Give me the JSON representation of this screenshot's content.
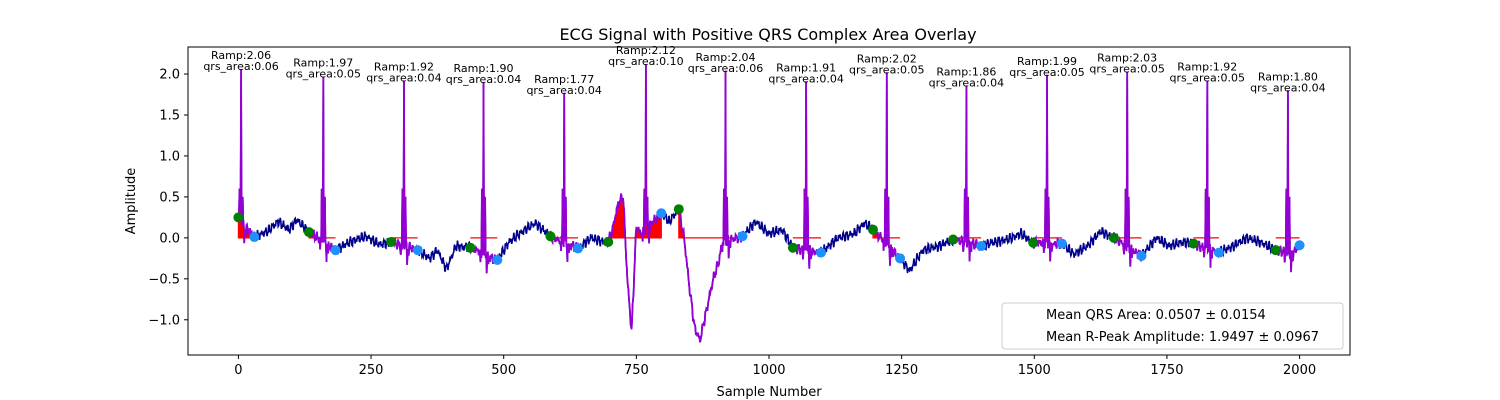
{
  "chart_data": {
    "type": "line",
    "title": "ECG Signal with Positive QRS Complex Area Overlay",
    "xlabel": "Sample Number",
    "ylabel": "Amplitude",
    "xlim": [
      -95,
      2095
    ],
    "ylim": [
      -1.43,
      2.33
    ],
    "x_ticks": [
      0,
      250,
      500,
      750,
      1000,
      1250,
      1500,
      1750,
      2000
    ],
    "y_ticks": [
      -1.0,
      -0.5,
      0.0,
      0.5,
      1.0,
      1.5,
      2.0
    ],
    "x_tick_labels": [
      "0",
      "250",
      "500",
      "750",
      "1000",
      "1250",
      "1500",
      "1750",
      "2000"
    ],
    "y_tick_labels": [
      "−1.0",
      "−0.5",
      "0.0",
      "0.5",
      "1.0",
      "1.5",
      "2.0"
    ],
    "grid": false,
    "legend_placement": "lower-right",
    "legend_entries": [
      "Mean QRS Area: 0.0507 ± 0.0154",
      "Mean R-Peak Amplitude: 1.9497 ± 0.0967"
    ],
    "colors": {
      "signal": "#00008b",
      "qrs_segment": "#9400d3",
      "qrs_area": "#ff0000",
      "onset_marker": "#008000",
      "offset_marker": "#1e90ff"
    },
    "r_peaks": [
      {
        "x": 5,
        "ramp": 2.06,
        "area": 0.06,
        "label_ramp": "Ramp:2.06",
        "label_area": "qrs_area:0.06"
      },
      {
        "x": 160,
        "ramp": 1.97,
        "area": 0.05,
        "label_ramp": "Ramp:1.97",
        "label_area": "qrs_area:0.05"
      },
      {
        "x": 312,
        "ramp": 1.92,
        "area": 0.04,
        "label_ramp": "Ramp:1.92",
        "label_area": "qrs_area:0.04"
      },
      {
        "x": 462,
        "ramp": 1.9,
        "area": 0.04,
        "label_ramp": "Ramp:1.90",
        "label_area": "qrs_area:0.04"
      },
      {
        "x": 614,
        "ramp": 1.77,
        "area": 0.04,
        "label_ramp": "Ramp:1.77",
        "label_area": "qrs_area:0.04"
      },
      {
        "x": 768,
        "ramp": 2.12,
        "area": 0.1,
        "label_ramp": "Ramp:2.12",
        "label_area": "qrs_area:0.10"
      },
      {
        "x": 918,
        "ramp": 2.04,
        "area": 0.06,
        "label_ramp": "Ramp:2.04",
        "label_area": "qrs_area:0.06"
      },
      {
        "x": 1070,
        "ramp": 1.91,
        "area": 0.04,
        "label_ramp": "Ramp:1.91",
        "label_area": "qrs_area:0.04"
      },
      {
        "x": 1222,
        "ramp": 2.02,
        "area": 0.05,
        "label_ramp": "Ramp:2.02",
        "label_area": "qrs_area:0.05"
      },
      {
        "x": 1372,
        "ramp": 1.86,
        "area": 0.04,
        "label_ramp": "Ramp:1.86",
        "label_area": "qrs_area:0.04"
      },
      {
        "x": 1524,
        "ramp": 1.99,
        "area": 0.05,
        "label_ramp": "Ramp:1.99",
        "label_area": "qrs_area:0.05"
      },
      {
        "x": 1675,
        "ramp": 2.03,
        "area": 0.05,
        "label_ramp": "Ramp:2.03",
        "label_area": "qrs_area:0.05"
      },
      {
        "x": 1826,
        "ramp": 1.92,
        "area": 0.05,
        "label_ramp": "Ramp:1.92",
        "label_area": "qrs_area:0.05"
      },
      {
        "x": 1978,
        "ramp": 1.8,
        "area": 0.04,
        "label_ramp": "Ramp:1.80",
        "label_area": "qrs_area:0.04"
      }
    ],
    "onset_markers": [
      {
        "x": 0,
        "y": 0.25
      },
      {
        "x": 133,
        "y": 0.07
      },
      {
        "x": 288,
        "y": -0.05
      },
      {
        "x": 437,
        "y": -0.12
      },
      {
        "x": 588,
        "y": 0.02
      },
      {
        "x": 697,
        "y": -0.05
      },
      {
        "x": 830,
        "y": 0.35
      },
      {
        "x": 1045,
        "y": -0.12
      },
      {
        "x": 1196,
        "y": 0.1
      },
      {
        "x": 1347,
        "y": -0.02
      },
      {
        "x": 1498,
        "y": -0.06
      },
      {
        "x": 1650,
        "y": 0.0
      },
      {
        "x": 1800,
        "y": -0.07
      },
      {
        "x": 1955,
        "y": -0.15
      }
    ],
    "offset_markers": [
      {
        "x": 30,
        "y": 0.01
      },
      {
        "x": 183,
        "y": -0.15
      },
      {
        "x": 338,
        "y": -0.15
      },
      {
        "x": 488,
        "y": -0.27
      },
      {
        "x": 640,
        "y": -0.13
      },
      {
        "x": 797,
        "y": 0.3
      },
      {
        "x": 950,
        "y": 0.02
      },
      {
        "x": 1098,
        "y": -0.18
      },
      {
        "x": 1247,
        "y": -0.25
      },
      {
        "x": 1400,
        "y": -0.1
      },
      {
        "x": 1552,
        "y": -0.07
      },
      {
        "x": 1702,
        "y": -0.22
      },
      {
        "x": 1848,
        "y": -0.18
      },
      {
        "x": 2000,
        "y": -0.09
      }
    ],
    "baseline_points": [
      [
        0,
        0.24
      ],
      [
        30,
        0.01
      ],
      [
        55,
        0.08
      ],
      [
        75,
        0.2
      ],
      [
        95,
        0.1
      ],
      [
        110,
        0.22
      ],
      [
        133,
        0.07
      ],
      [
        183,
        -0.15
      ],
      [
        210,
        -0.05
      ],
      [
        240,
        0.02
      ],
      [
        265,
        -0.08
      ],
      [
        288,
        -0.05
      ],
      [
        338,
        -0.15
      ],
      [
        360,
        -0.25
      ],
      [
        375,
        -0.15
      ],
      [
        392,
        -0.38
      ],
      [
        410,
        -0.1
      ],
      [
        437,
        -0.12
      ],
      [
        488,
        -0.27
      ],
      [
        510,
        -0.05
      ],
      [
        540,
        0.1
      ],
      [
        560,
        0.18
      ],
      [
        588,
        0.02
      ],
      [
        640,
        -0.13
      ],
      [
        665,
        0.0
      ],
      [
        690,
        -0.05
      ],
      [
        697,
        -0.05
      ],
      [
        705,
        0.1
      ],
      [
        715,
        0.4
      ],
      [
        725,
        0.52
      ],
      [
        733,
        -0.5
      ],
      [
        741,
        -1.15
      ],
      [
        750,
        0.15
      ],
      [
        758,
        0.05
      ],
      [
        797,
        0.3
      ],
      [
        812,
        0.2
      ],
      [
        830,
        0.35
      ],
      [
        840,
        0.0
      ],
      [
        850,
        -0.6
      ],
      [
        860,
        -1.1
      ],
      [
        870,
        -1.25
      ],
      [
        885,
        -0.8
      ],
      [
        895,
        -0.5
      ],
      [
        905,
        -0.3
      ],
      [
        912,
        -0.05
      ],
      [
        950,
        0.02
      ],
      [
        975,
        0.2
      ],
      [
        1000,
        0.05
      ],
      [
        1025,
        0.1
      ],
      [
        1045,
        -0.12
      ],
      [
        1098,
        -0.18
      ],
      [
        1130,
        0.0
      ],
      [
        1160,
        0.05
      ],
      [
        1180,
        0.18
      ],
      [
        1196,
        0.1
      ],
      [
        1247,
        -0.25
      ],
      [
        1265,
        -0.4
      ],
      [
        1290,
        -0.15
      ],
      [
        1320,
        -0.1
      ],
      [
        1347,
        -0.02
      ],
      [
        1400,
        -0.1
      ],
      [
        1425,
        -0.05
      ],
      [
        1450,
        -0.02
      ],
      [
        1475,
        0.05
      ],
      [
        1498,
        -0.06
      ],
      [
        1552,
        -0.07
      ],
      [
        1575,
        -0.2
      ],
      [
        1600,
        -0.1
      ],
      [
        1625,
        0.08
      ],
      [
        1650,
        0.0
      ],
      [
        1702,
        -0.22
      ],
      [
        1730,
        0.0
      ],
      [
        1755,
        -0.1
      ],
      [
        1780,
        -0.05
      ],
      [
        1800,
        -0.07
      ],
      [
        1848,
        -0.18
      ],
      [
        1875,
        -0.1
      ],
      [
        1900,
        0.0
      ],
      [
        1925,
        -0.05
      ],
      [
        1955,
        -0.15
      ],
      [
        1985,
        -0.2
      ],
      [
        2000,
        -0.09
      ]
    ]
  }
}
